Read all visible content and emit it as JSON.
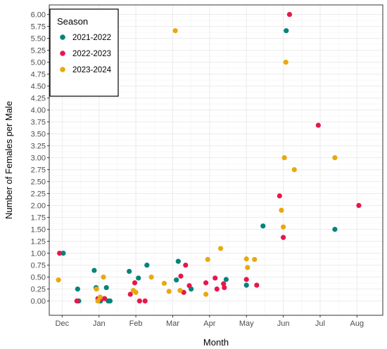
{
  "chart_data": {
    "type": "scatter",
    "title": "",
    "xlabel": "Month",
    "ylabel": "Number of Females per Male",
    "ylim": [
      -0.3,
      6.2
    ],
    "x_unit": "months since Dec 1",
    "xlim": [
      -0.35,
      8.7
    ],
    "x_ticks": [
      {
        "label": "Dec",
        "at": 0
      },
      {
        "label": "Jan",
        "at": 1
      },
      {
        "label": "Feb",
        "at": 2
      },
      {
        "label": "Mar",
        "at": 3
      },
      {
        "label": "Apr",
        "at": 4
      },
      {
        "label": "May",
        "at": 5
      },
      {
        "label": "Jun",
        "at": 6
      },
      {
        "label": "Jul",
        "at": 7
      },
      {
        "label": "Aug",
        "at": 8
      }
    ],
    "y_ticks": [
      "0.00",
      "0.25",
      "0.50",
      "0.75",
      "1.00",
      "1.25",
      "1.50",
      "1.75",
      "2.00",
      "2.25",
      "2.50",
      "2.75",
      "3.00",
      "3.25",
      "3.50",
      "3.75",
      "4.00",
      "4.25",
      "4.50",
      "4.75",
      "5.00",
      "5.25",
      "5.50",
      "5.75",
      "6.00"
    ],
    "grid": true,
    "legend": {
      "title": "Season",
      "position": "top-left"
    },
    "series": [
      {
        "name": "2021-2022",
        "color": "#00847A",
        "points": [
          [
            0.03,
            1.0
          ],
          [
            0.42,
            0.25
          ],
          [
            0.45,
            0.0
          ],
          [
            0.87,
            0.64
          ],
          [
            0.92,
            0.28
          ],
          [
            1.04,
            0.0
          ],
          [
            1.2,
            0.28
          ],
          [
            1.25,
            0.0
          ],
          [
            1.3,
            0.0
          ],
          [
            1.82,
            0.62
          ],
          [
            2.07,
            0.48
          ],
          [
            2.3,
            0.75
          ],
          [
            3.1,
            0.44
          ],
          [
            3.15,
            0.83
          ],
          [
            3.5,
            0.25
          ],
          [
            4.45,
            0.45
          ],
          [
            5.0,
            0.33
          ],
          [
            5.45,
            1.57
          ],
          [
            6.08,
            5.66
          ],
          [
            7.4,
            1.5
          ]
        ]
      },
      {
        "name": "2022-2023",
        "color": "#E8174B",
        "points": [
          [
            -0.07,
            1.0
          ],
          [
            0.4,
            0.0
          ],
          [
            0.97,
            0.05
          ],
          [
            1.06,
            0.04
          ],
          [
            1.15,
            0.05
          ],
          [
            1.85,
            0.14
          ],
          [
            1.97,
            0.38
          ],
          [
            2.1,
            0.0
          ],
          [
            2.25,
            0.0
          ],
          [
            3.22,
            0.52
          ],
          [
            3.3,
            0.18
          ],
          [
            3.35,
            0.75
          ],
          [
            3.45,
            0.32
          ],
          [
            3.9,
            0.38
          ],
          [
            4.15,
            0.48
          ],
          [
            4.2,
            0.25
          ],
          [
            4.38,
            0.36
          ],
          [
            4.4,
            0.28
          ],
          [
            5.0,
            0.45
          ],
          [
            5.28,
            0.33
          ],
          [
            5.9,
            2.2
          ],
          [
            6.0,
            1.33
          ],
          [
            6.17,
            6.0
          ],
          [
            6.95,
            3.68
          ],
          [
            8.05,
            2.0
          ]
        ]
      },
      {
        "name": "2023-2024",
        "color": "#E8A90E",
        "points": [
          [
            -0.1,
            0.44
          ],
          [
            0.93,
            0.25
          ],
          [
            0.97,
            0.0
          ],
          [
            1.03,
            0.08
          ],
          [
            1.12,
            0.5
          ],
          [
            1.93,
            0.22
          ],
          [
            2.0,
            0.18
          ],
          [
            2.42,
            0.5
          ],
          [
            2.77,
            0.37
          ],
          [
            2.9,
            0.2
          ],
          [
            3.07,
            5.66
          ],
          [
            3.2,
            0.22
          ],
          [
            3.9,
            0.14
          ],
          [
            3.95,
            0.87
          ],
          [
            4.3,
            1.1
          ],
          [
            5.0,
            0.88
          ],
          [
            5.03,
            0.7
          ],
          [
            5.22,
            0.87
          ],
          [
            5.95,
            1.9
          ],
          [
            6.0,
            1.55
          ],
          [
            6.03,
            3.0
          ],
          [
            6.07,
            5.0
          ],
          [
            6.3,
            2.75
          ],
          [
            7.4,
            3.0
          ]
        ]
      }
    ]
  }
}
